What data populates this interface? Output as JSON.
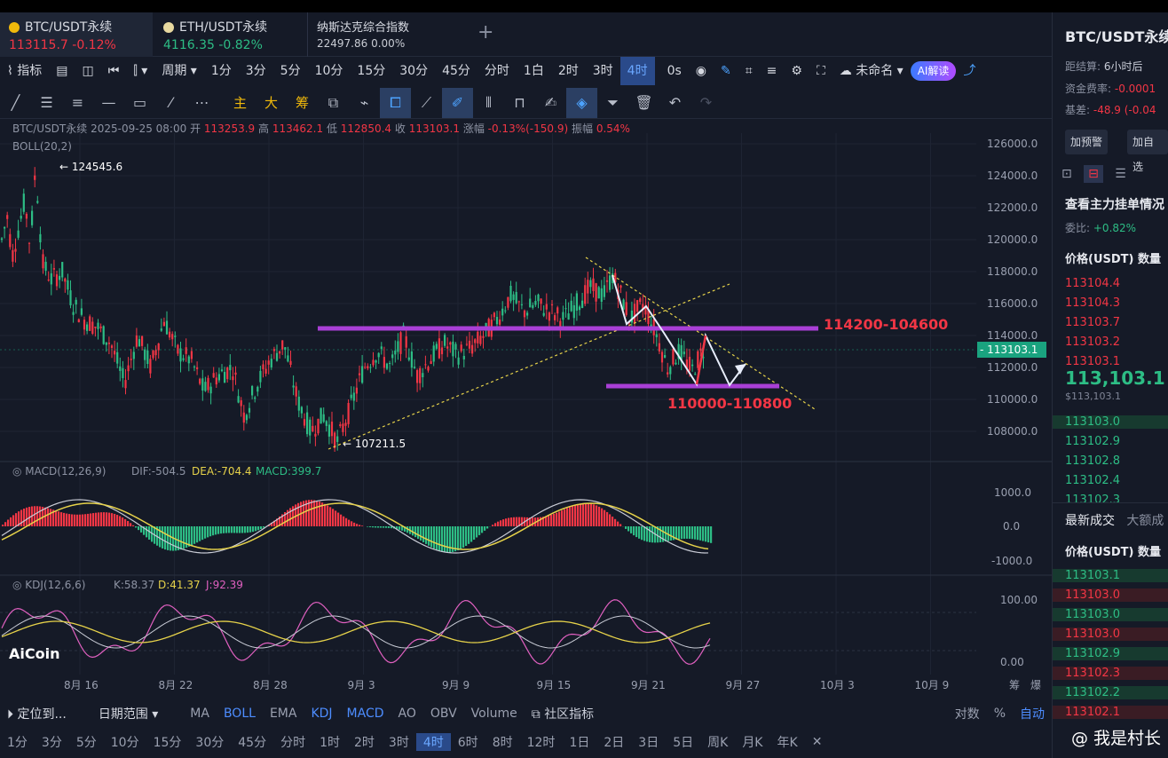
{
  "tabs": [
    {
      "name": "BTC/USDT永续",
      "price": "113115.7",
      "change": "-0.12%"
    },
    {
      "name": "ETH/USDT永续",
      "price": "4116.35",
      "change": "-0.82%"
    },
    {
      "name": "纳斯达克综合指数",
      "price": "22497.86",
      "change": "0.00%"
    }
  ],
  "toolbar": {
    "indicator": "指标",
    "period": "周期",
    "intervals": [
      "1分",
      "3分",
      "5分",
      "10分",
      "15分",
      "30分",
      "45分",
      "分时",
      "1白",
      "2时",
      "3时",
      "4时"
    ],
    "active_interval": "4时",
    "replay": "0s",
    "unnamed": "未命名",
    "ai": "AI解读"
  },
  "draw_tools": {
    "zhu": "主",
    "da": "大",
    "chou": "筹"
  },
  "info": {
    "symbol": "BTC/USDT永续",
    "date": "2025-09-25 08:00",
    "open_l": "开",
    "open": "113253.9",
    "high_l": "高",
    "high": "113462.1",
    "low_l": "低",
    "low": "112850.4",
    "close_l": "收",
    "close": "113103.1",
    "chg_l": "涨幅",
    "chg": "-0.13%(-150.9)",
    "amp_l": "振幅",
    "amp": "0.54%",
    "boll": "BOLL(20,2)"
  },
  "macd": {
    "label": "MACD(12,26,9)",
    "dif": "DIF:-504.5",
    "dea": "DEA:-704.4",
    "macd": "MACD:399.7"
  },
  "kdj": {
    "label": "KDJ(12,6,6)",
    "k": "K:58.37",
    "d": "D:41.37",
    "j": "J:92.39"
  },
  "annotations": {
    "high": "124545.6",
    "low": "107211.5",
    "zone1": "114200-104600",
    "zone2": "110000-110800",
    "current_price": "113103.1"
  },
  "price_axis": [
    "126000.0",
    "124000.0",
    "122000.0",
    "120000.0",
    "118000.0",
    "116000.0",
    "114000.0",
    "112000.0",
    "110000.0",
    "108000.0"
  ],
  "macd_axis": [
    "1000.0",
    "0.0",
    "-1000.0"
  ],
  "kdj_axis": [
    "100.00",
    "0.00"
  ],
  "date_axis": [
    "8月 16",
    "8月 22",
    "8月 28",
    "9月 3",
    "9月 9",
    "9月 15",
    "9月 21",
    "9月 27",
    "10月 3",
    "10月 9"
  ],
  "date_axis_right": [
    "筹",
    "爆"
  ],
  "logo": "AiCoin",
  "bottom": {
    "locate": "定位到...",
    "range": "日期范围",
    "indicators": [
      "MA",
      "BOLL",
      "EMA",
      "KDJ",
      "MACD",
      "AO",
      "OBV",
      "Volume"
    ],
    "community": "社区指标",
    "scale": [
      "对数",
      "%",
      "自动"
    ]
  },
  "bottom_intervals": [
    "1分",
    "3分",
    "5分",
    "10分",
    "15分",
    "30分",
    "45分",
    "分时",
    "1时",
    "2时",
    "3时",
    "4时",
    "6时",
    "8时",
    "12时",
    "1日",
    "2日",
    "3日",
    "5日",
    "周K",
    "月K",
    "年K"
  ],
  "right_panel": {
    "title": "BTC/USDT永续",
    "settle_l": "距结算:",
    "settle": "6小时后",
    "funding_l": "资金费率:",
    "funding": "-0.0001",
    "basis_l": "基差:",
    "basis": "-48.9 (-0.04",
    "alert": "加预警",
    "fav": "加自选",
    "book_title": "查看主力挂单情况",
    "ratio_l": "委比:",
    "ratio": "+0.82%",
    "col_price": "价格(USDT)",
    "col_qty": "数量",
    "asks": [
      "113104.4",
      "113104.3",
      "113103.7",
      "113103.2",
      "113103.1"
    ],
    "last": "113,103.1",
    "last_sub": "$113,103.1",
    "bids": [
      "113103.0",
      "113102.9",
      "113102.8",
      "113102.4",
      "113102.3"
    ],
    "trades_title": "最新成交",
    "trades_tab2": "大额成",
    "trades": [
      "113103.1",
      "113103.0",
      "113103.0",
      "113103.0",
      "113102.9",
      "113102.3",
      "113102.2",
      "113102.1"
    ]
  },
  "watermark": "@ 我是村长"
}
